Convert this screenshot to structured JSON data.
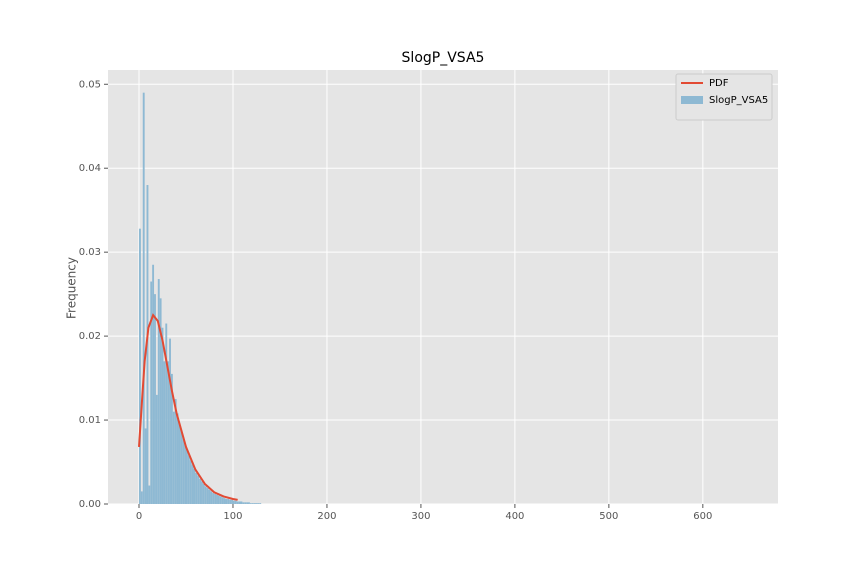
{
  "chart_data": {
    "type": "histogram",
    "title": "SlogP_VSA5",
    "ylabel": "Frequency",
    "xlim": [
      -33,
      680
    ],
    "xticks": [
      0,
      100,
      200,
      300,
      400,
      500,
      600
    ],
    "ylim": [
      0,
      0.0517
    ],
    "yticks": [
      {
        "value": 0,
        "label": "0.00"
      },
      {
        "value": 0.01,
        "label": "0.01"
      },
      {
        "value": 0.02,
        "label": "0.02"
      },
      {
        "value": 0.03,
        "label": "0.03"
      },
      {
        "value": 0.04,
        "label": "0.04"
      },
      {
        "value": 0.05,
        "label": "0.05"
      }
    ],
    "grid": true,
    "legend": "upper right",
    "series": [
      {
        "name": "PDF",
        "type": "line",
        "color": "#e24a33",
        "x": [
          0,
          3,
          6,
          10,
          15,
          20,
          25,
          30,
          35,
          40,
          50,
          60,
          70,
          80,
          90,
          100,
          105
        ],
        "values": [
          0.0068,
          0.012,
          0.017,
          0.021,
          0.0225,
          0.0218,
          0.0195,
          0.0165,
          0.0135,
          0.0108,
          0.0068,
          0.0041,
          0.0024,
          0.0014,
          0.0009,
          0.0006,
          0.0005
        ]
      },
      {
        "name": "SlogP_VSA5",
        "type": "histogram",
        "color": "#8eb9d3",
        "bins": [
          0,
          2,
          4,
          6,
          8,
          10,
          12,
          14,
          16,
          18,
          20,
          22,
          24,
          26,
          28,
          30,
          32,
          34,
          36,
          38,
          40,
          42,
          44,
          46,
          48,
          50,
          52,
          54,
          56,
          58,
          60,
          62,
          64,
          66,
          68,
          70,
          72,
          74,
          76,
          78,
          80,
          82,
          84,
          86,
          88,
          90,
          92,
          94,
          96,
          98,
          100,
          102,
          104,
          106,
          108,
          110,
          112,
          114,
          116,
          118,
          120,
          122,
          124,
          126,
          128,
          130
        ],
        "values": [
          0.0328,
          0.0015,
          0.049,
          0.009,
          0.038,
          0.0022,
          0.0265,
          0.0285,
          0.025,
          0.013,
          0.0268,
          0.0245,
          0.021,
          0.017,
          0.0215,
          0.017,
          0.0197,
          0.0155,
          0.011,
          0.0125,
          0.0108,
          0.0095,
          0.0088,
          0.008,
          0.0072,
          0.0065,
          0.0058,
          0.0052,
          0.0047,
          0.0042,
          0.0037,
          0.0034,
          0.003,
          0.0027,
          0.0024,
          0.0021,
          0.0019,
          0.0017,
          0.0015,
          0.0013,
          0.0012,
          0.0011,
          0.001,
          0.0009,
          0.0008,
          0.0007,
          0.0006,
          0.0006,
          0.0005,
          0.0005,
          0.0004,
          0.0004,
          0.0003,
          0.0003,
          0.0003,
          0.0002,
          0.0002,
          0.0002,
          0.0002,
          0.0001,
          0.0001,
          0.0001,
          0.0001,
          0.0001,
          0.0001
        ]
      }
    ]
  }
}
